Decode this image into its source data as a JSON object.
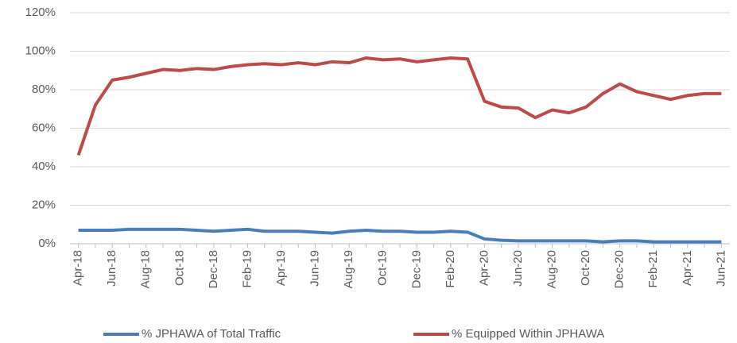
{
  "chart_data": {
    "type": "line",
    "categories": [
      "Apr-18",
      null,
      "Jun-18",
      null,
      "Aug-18",
      null,
      "Oct-18",
      null,
      "Dec-18",
      null,
      "Feb-19",
      null,
      "Apr-19",
      null,
      "Jun-19",
      null,
      "Aug-19",
      null,
      "Oct-19",
      null,
      "Dec-19",
      null,
      "Feb-20",
      null,
      "Apr-20",
      null,
      "Jun-20",
      null,
      "Aug-20",
      null,
      "Oct-20",
      null,
      "Dec-20",
      null,
      "Feb-21",
      null,
      "Apr-21",
      null,
      "Jun-21"
    ],
    "series": [
      {
        "name": "% JPHAWA of Total Traffic",
        "color": "#4a7ebb",
        "values": [
          7,
          7,
          7,
          7.5,
          7.5,
          7.5,
          7.5,
          7,
          6.5,
          7,
          7.5,
          6.5,
          6.5,
          6.5,
          6,
          5.5,
          6.5,
          7,
          6.5,
          6.5,
          6,
          6,
          6.5,
          6,
          2.5,
          1.8,
          1.5,
          1.5,
          1.5,
          1.5,
          1.5,
          1,
          1.5,
          1.5,
          1,
          1,
          1,
          1,
          1
        ]
      },
      {
        "name": "% Equipped Within JPHAWA",
        "color": "#be4b48",
        "values": [
          46,
          72,
          85,
          86.5,
          88.5,
          90.5,
          90,
          91,
          90.5,
          92,
          93,
          93.5,
          93,
          94,
          93,
          94.5,
          94,
          96.5,
          95.5,
          96,
          94.5,
          95.5,
          96.5,
          96,
          74,
          71,
          70.5,
          65.5,
          69.5,
          68,
          71,
          78,
          83,
          79,
          77,
          75,
          77,
          78,
          78
        ]
      }
    ],
    "ylim": [
      0,
      120
    ],
    "yticks": [
      {
        "value": 0,
        "label": "0%"
      },
      {
        "value": 20,
        "label": "20%"
      },
      {
        "value": 40,
        "label": "40%"
      },
      {
        "value": 60,
        "label": "60%"
      },
      {
        "value": 80,
        "label": "80%"
      },
      {
        "value": 100,
        "label": "100%"
      },
      {
        "value": 120,
        "label": "120%"
      }
    ],
    "grid": true,
    "legend": "bottom"
  }
}
